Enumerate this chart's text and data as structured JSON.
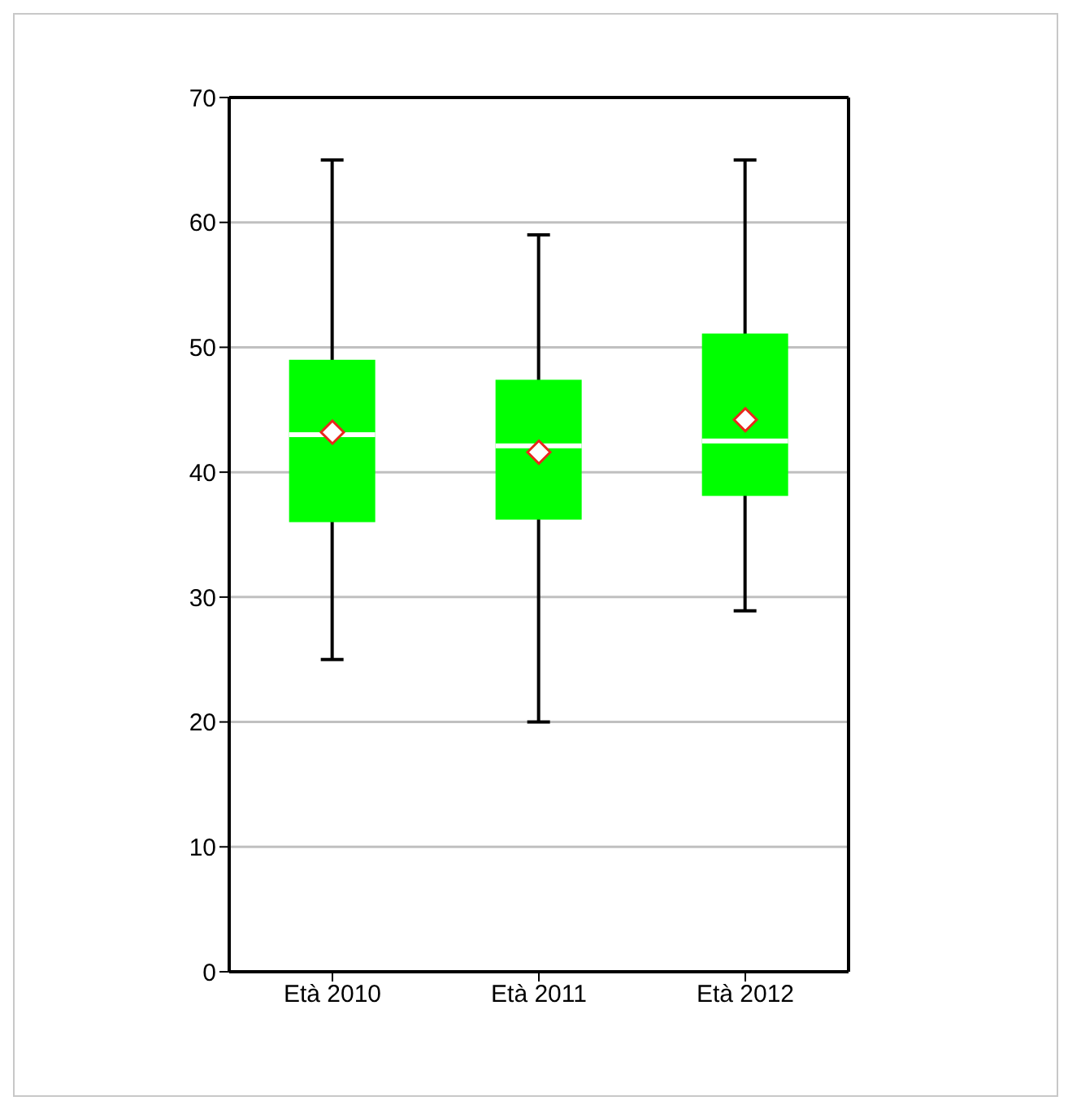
{
  "chart_data": {
    "type": "box",
    "categories": [
      "Età 2010",
      "Età 2011",
      "Età 2012"
    ],
    "color": "#00ff00",
    "boxes": [
      {
        "low": 25,
        "q1": 36,
        "median": 43,
        "q3": 49,
        "high": 65,
        "mean": 43.2
      },
      {
        "low": 20,
        "q1": 36.2,
        "median": 42.1,
        "q3": 47.4,
        "high": 59,
        "mean": 41.6
      },
      {
        "low": 28.9,
        "q1": 38.1,
        "median": 42.5,
        "q3": 51.1,
        "high": 65,
        "mean": 44.2
      }
    ],
    "ylim": [
      0,
      70
    ],
    "yticks": [
      0,
      10,
      20,
      30,
      40,
      50,
      60,
      70
    ],
    "grid": "y",
    "marker": "diamond"
  }
}
